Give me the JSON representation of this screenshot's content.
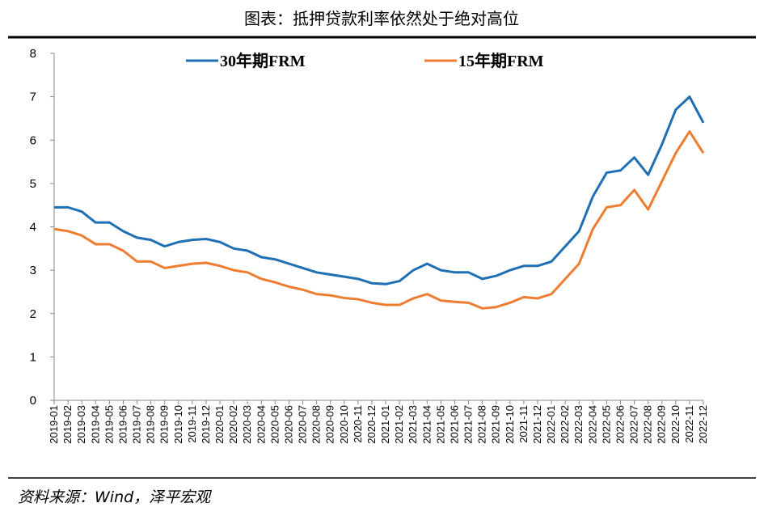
{
  "chart_data": {
    "type": "line",
    "title": "图表：抵押贷款利率依然处于绝对高位",
    "source": "资料来源：Wind，泽平宏观",
    "categories": [
      "2019-01",
      "2019-02",
      "2019-03",
      "2019-04",
      "2019-05",
      "2019-06",
      "2019-07",
      "2019-08",
      "2019-09",
      "2019-10",
      "2019-11",
      "2019-12",
      "2020-01",
      "2020-02",
      "2020-03",
      "2020-04",
      "2020-05",
      "2020-06",
      "2020-07",
      "2020-08",
      "2020-09",
      "2020-10",
      "2020-11",
      "2020-12",
      "2021-01",
      "2021-02",
      "2021-03",
      "2021-04",
      "2021-05",
      "2021-06",
      "2021-07",
      "2021-08",
      "2021-09",
      "2021-10",
      "2021-11",
      "2021-12",
      "2022-01",
      "2022-02",
      "2022-03",
      "2022-04",
      "2022-05",
      "2022-06",
      "2022-07",
      "2022-08",
      "2022-09",
      "2022-10",
      "2022-11",
      "2022-12"
    ],
    "series": [
      {
        "name": "30年期FRM",
        "color": "#1f6fb5",
        "values": [
          4.45,
          4.45,
          4.35,
          4.1,
          4.1,
          3.9,
          3.75,
          3.7,
          3.55,
          3.65,
          3.7,
          3.72,
          3.65,
          3.5,
          3.45,
          3.3,
          3.25,
          3.15,
          3.05,
          2.95,
          2.9,
          2.85,
          2.8,
          2.7,
          2.68,
          2.75,
          3.0,
          3.15,
          3.0,
          2.95,
          2.95,
          2.8,
          2.87,
          3.0,
          3.1,
          3.1,
          3.2,
          3.55,
          3.9,
          4.7,
          5.25,
          5.3,
          5.6,
          5.2,
          5.9,
          6.7,
          7.0,
          6.4
        ]
      },
      {
        "name": "15年期FRM",
        "color": "#ed7d31",
        "values": [
          3.95,
          3.9,
          3.8,
          3.6,
          3.6,
          3.45,
          3.2,
          3.2,
          3.05,
          3.1,
          3.15,
          3.17,
          3.1,
          3.0,
          2.95,
          2.8,
          2.72,
          2.62,
          2.55,
          2.45,
          2.42,
          2.36,
          2.33,
          2.25,
          2.2,
          2.2,
          2.35,
          2.45,
          2.3,
          2.27,
          2.25,
          2.12,
          2.15,
          2.25,
          2.38,
          2.35,
          2.45,
          2.8,
          3.15,
          3.95,
          4.45,
          4.5,
          4.85,
          4.4,
          5.05,
          5.7,
          6.2,
          5.7
        ]
      }
    ],
    "ylim": [
      0,
      8
    ],
    "yticks": [
      0,
      1,
      2,
      3,
      4,
      5,
      6,
      7,
      8
    ]
  }
}
